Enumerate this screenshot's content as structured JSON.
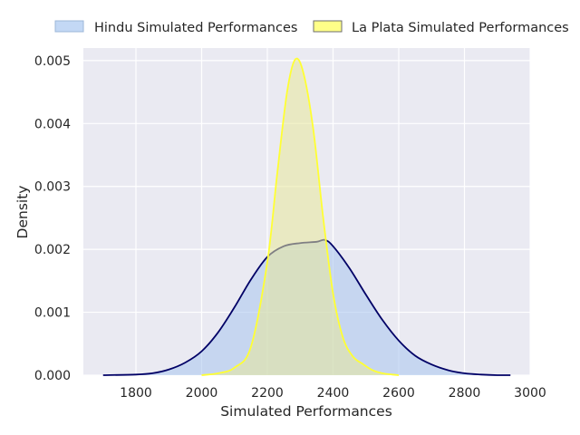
{
  "chart_data": {
    "type": "area",
    "title": "",
    "xlabel": "Simulated Performances",
    "ylabel": "Density",
    "xlim": [
      1640,
      3000
    ],
    "ylim": [
      0,
      0.0052
    ],
    "grid": true,
    "legend_position": "top-center",
    "x_ticks": [
      1800,
      2000,
      2200,
      2400,
      2600,
      2800,
      3000
    ],
    "y_ticks": [
      0.0,
      0.001,
      0.002,
      0.003,
      0.004,
      0.005
    ],
    "x_tick_labels": [
      "1800",
      "2000",
      "2200",
      "2400",
      "2600",
      "2800",
      "3000"
    ],
    "y_tick_labels": [
      "0.000",
      "0.001",
      "0.002",
      "0.003",
      "0.004",
      "0.005"
    ],
    "series": [
      {
        "name": "Hindu Simulated Performances",
        "fill_color": "#a7c5ef",
        "line_color": "#000066",
        "x": [
          1700,
          1800,
          1850,
          1900,
          1950,
          2000,
          2050,
          2100,
          2150,
          2200,
          2250,
          2300,
          2350,
          2375,
          2400,
          2450,
          2500,
          2550,
          2600,
          2650,
          2700,
          2750,
          2800,
          2850,
          2900,
          2940
        ],
        "y": [
          0.0,
          1e-05,
          3e-05,
          9e-05,
          0.0002,
          0.00038,
          0.00068,
          0.00108,
          0.00152,
          0.00188,
          0.00205,
          0.0021,
          0.00212,
          0.00215,
          0.00205,
          0.0017,
          0.00128,
          0.00088,
          0.00055,
          0.00031,
          0.00017,
          8e-05,
          3e-05,
          1e-05,
          0.0,
          0.0
        ]
      },
      {
        "name": "La Plata Simulated Performances",
        "fill_color": "#e8e89a",
        "line_color": "#ffff33",
        "x": [
          2000,
          2050,
          2100,
          2150,
          2200,
          2230,
          2260,
          2285,
          2310,
          2340,
          2370,
          2400,
          2430,
          2460,
          2490,
          2520,
          2550,
          2580,
          2600
        ],
        "y": [
          0.0,
          3e-05,
          0.00012,
          0.00045,
          0.0018,
          0.0032,
          0.0045,
          0.00502,
          0.0048,
          0.0039,
          0.0025,
          0.0013,
          0.0006,
          0.0003,
          0.00018,
          8e-05,
          3e-05,
          1e-05,
          0.0
        ]
      }
    ]
  }
}
